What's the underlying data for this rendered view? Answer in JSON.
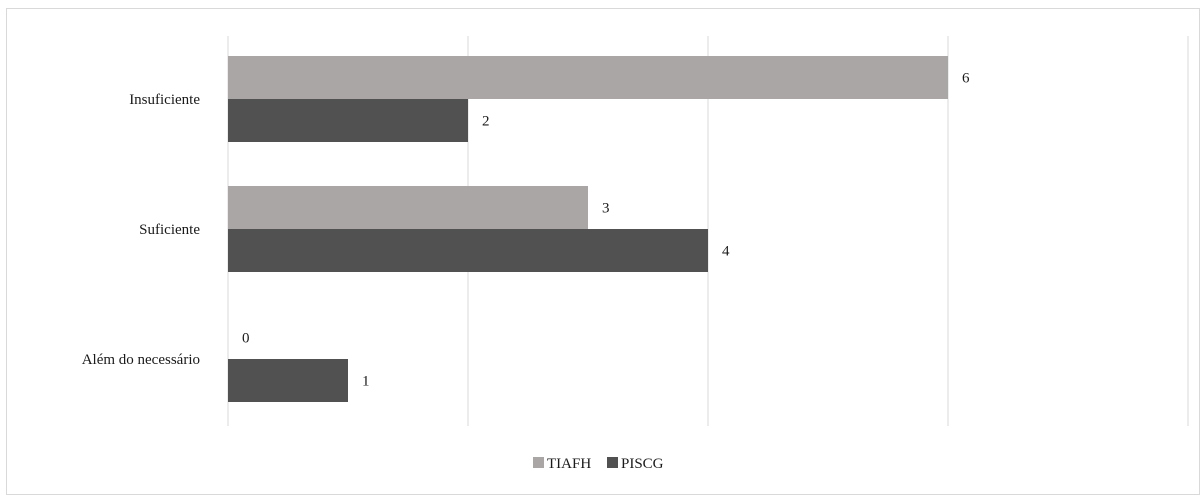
{
  "chart_data": {
    "type": "bar",
    "orientation": "horizontal",
    "categories": [
      "Insuficiente",
      "Suficiente",
      "Além do necessário"
    ],
    "series": [
      {
        "name": "TIAFH",
        "values": [
          6,
          3,
          0
        ],
        "color": "#a9a6a5"
      },
      {
        "name": "PISCG",
        "values": [
          2,
          4,
          1
        ],
        "color": "#515151"
      }
    ],
    "xlim": [
      0,
      8
    ],
    "grid": true,
    "legend": "bottom"
  },
  "colors": {
    "gridline": "#d9d9d9",
    "border": "#d9d9d9"
  }
}
